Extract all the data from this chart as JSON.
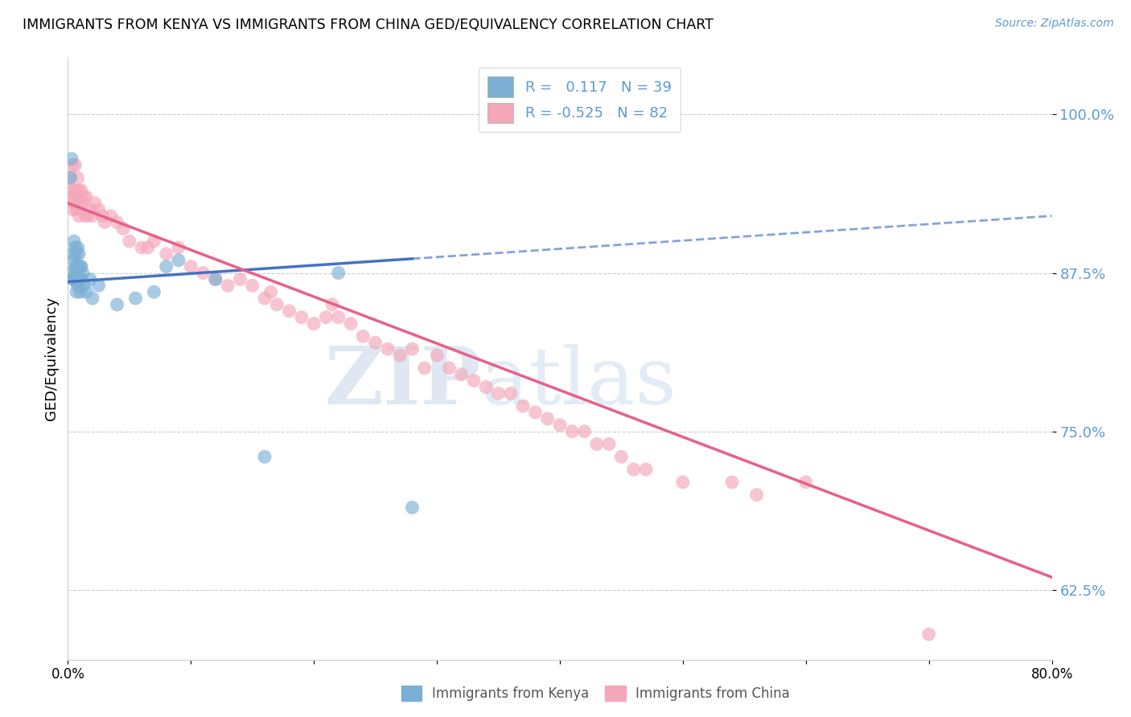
{
  "title": "IMMIGRANTS FROM KENYA VS IMMIGRANTS FROM CHINA GED/EQUIVALENCY CORRELATION CHART",
  "source": "Source: ZipAtlas.com",
  "ylabel": "GED/Equivalency",
  "y_ticks": [
    0.625,
    0.75,
    0.875,
    1.0
  ],
  "y_tick_labels": [
    "62.5%",
    "75.0%",
    "87.5%",
    "100.0%"
  ],
  "xlim": [
    0.0,
    0.8
  ],
  "ylim": [
    0.57,
    1.045
  ],
  "kenya_R": 0.117,
  "kenya_N": 39,
  "china_R": -0.525,
  "china_N": 82,
  "kenya_color": "#7bafd4",
  "china_color": "#f4a7b9",
  "kenya_line_color": "#4472c4",
  "china_line_color": "#e8608a",
  "kenya_line_x0": 0.0,
  "kenya_line_y0": 0.868,
  "kenya_line_x1": 0.8,
  "kenya_line_y1": 0.92,
  "china_line_x0": 0.0,
  "china_line_y0": 0.93,
  "china_line_x1": 0.8,
  "china_line_y1": 0.635,
  "kenya_scatter_x": [
    0.002,
    0.003,
    0.003,
    0.004,
    0.004,
    0.005,
    0.005,
    0.005,
    0.006,
    0.006,
    0.006,
    0.007,
    0.007,
    0.007,
    0.008,
    0.008,
    0.008,
    0.009,
    0.009,
    0.01,
    0.01,
    0.01,
    0.011,
    0.011,
    0.012,
    0.013,
    0.015,
    0.018,
    0.02,
    0.025,
    0.04,
    0.055,
    0.07,
    0.08,
    0.09,
    0.12,
    0.16,
    0.22,
    0.28
  ],
  "kenya_scatter_y": [
    0.95,
    0.965,
    0.875,
    0.89,
    0.87,
    0.9,
    0.885,
    0.87,
    0.895,
    0.88,
    0.87,
    0.89,
    0.875,
    0.86,
    0.895,
    0.88,
    0.865,
    0.89,
    0.87,
    0.88,
    0.87,
    0.86,
    0.88,
    0.87,
    0.875,
    0.865,
    0.86,
    0.87,
    0.855,
    0.865,
    0.85,
    0.855,
    0.86,
    0.88,
    0.885,
    0.87,
    0.73,
    0.875,
    0.69
  ],
  "china_scatter_x": [
    0.002,
    0.003,
    0.003,
    0.004,
    0.004,
    0.005,
    0.005,
    0.006,
    0.006,
    0.007,
    0.007,
    0.008,
    0.008,
    0.009,
    0.009,
    0.01,
    0.011,
    0.012,
    0.013,
    0.014,
    0.015,
    0.016,
    0.018,
    0.02,
    0.022,
    0.025,
    0.028,
    0.03,
    0.035,
    0.04,
    0.045,
    0.05,
    0.06,
    0.065,
    0.07,
    0.08,
    0.09,
    0.1,
    0.11,
    0.12,
    0.13,
    0.14,
    0.15,
    0.16,
    0.165,
    0.17,
    0.18,
    0.19,
    0.2,
    0.21,
    0.215,
    0.22,
    0.23,
    0.24,
    0.25,
    0.26,
    0.27,
    0.28,
    0.29,
    0.3,
    0.31,
    0.32,
    0.33,
    0.34,
    0.35,
    0.36,
    0.37,
    0.38,
    0.39,
    0.4,
    0.41,
    0.42,
    0.43,
    0.44,
    0.45,
    0.46,
    0.47,
    0.5,
    0.54,
    0.56,
    0.6,
    0.7
  ],
  "china_scatter_y": [
    0.95,
    0.94,
    0.935,
    0.96,
    0.925,
    0.94,
    0.93,
    0.96,
    0.935,
    0.94,
    0.925,
    0.95,
    0.935,
    0.94,
    0.92,
    0.93,
    0.94,
    0.93,
    0.935,
    0.92,
    0.935,
    0.92,
    0.925,
    0.92,
    0.93,
    0.925,
    0.92,
    0.915,
    0.92,
    0.915,
    0.91,
    0.9,
    0.895,
    0.895,
    0.9,
    0.89,
    0.895,
    0.88,
    0.875,
    0.87,
    0.865,
    0.87,
    0.865,
    0.855,
    0.86,
    0.85,
    0.845,
    0.84,
    0.835,
    0.84,
    0.85,
    0.84,
    0.835,
    0.825,
    0.82,
    0.815,
    0.81,
    0.815,
    0.8,
    0.81,
    0.8,
    0.795,
    0.79,
    0.785,
    0.78,
    0.78,
    0.77,
    0.765,
    0.76,
    0.755,
    0.75,
    0.75,
    0.74,
    0.74,
    0.73,
    0.72,
    0.72,
    0.71,
    0.71,
    0.7,
    0.71,
    0.59
  ],
  "watermark_zip": "ZIP",
  "watermark_atlas": "atlas",
  "legend_kenya_label": "Immigrants from Kenya",
  "legend_china_label": "Immigrants from China"
}
